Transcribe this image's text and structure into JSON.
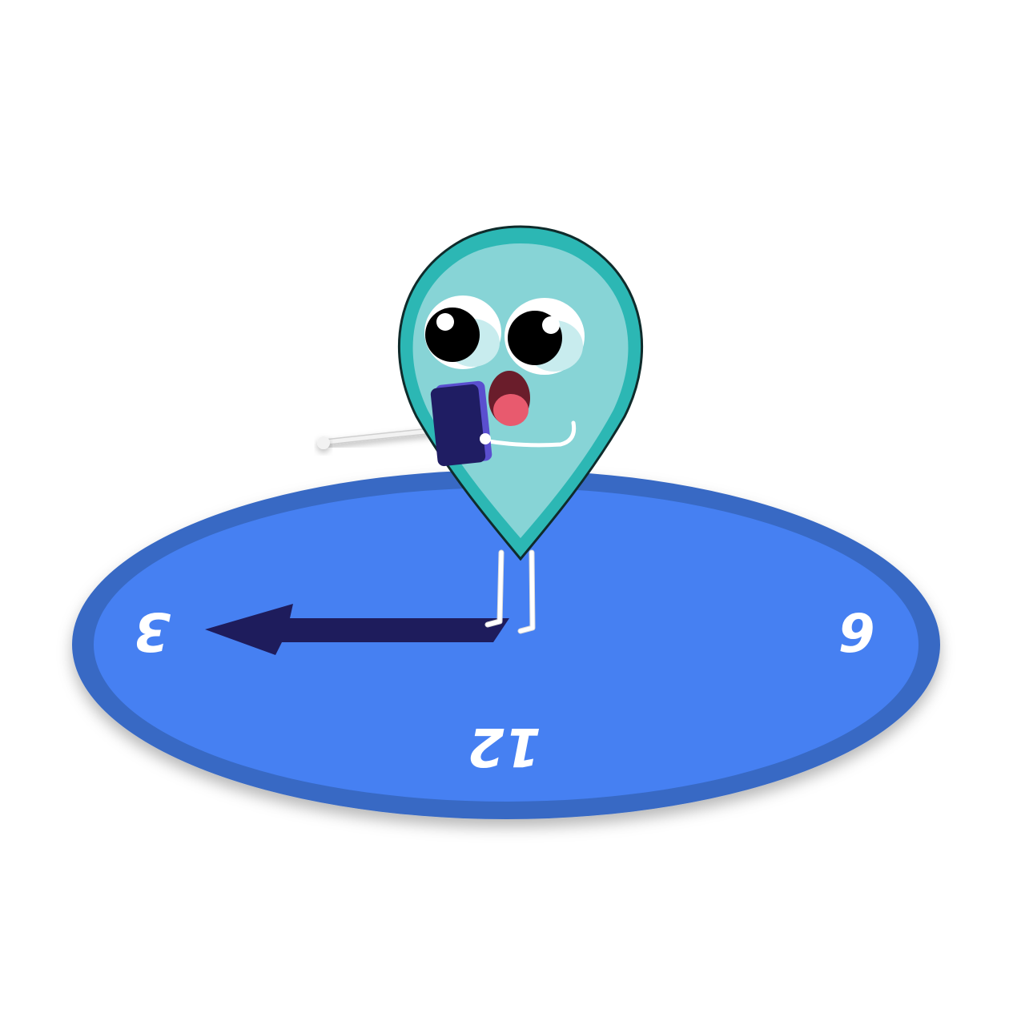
{
  "scene": {
    "dial_numbers": [
      "12",
      "3",
      "6"
    ],
    "colors": {
      "dial_outer": "#3869c4",
      "dial_inner": "#4680f2",
      "clock_hand": "#1e1c5c",
      "character_outer": "#2cb7b4",
      "character_inner": "#87d4d6",
      "character_outline": "#0f2b2b",
      "mouth": "#6a1d2b",
      "tongue": "#e85a6e",
      "phone": "#1f1d63",
      "phone_edge": "#5a4fcf",
      "limbs": "#ffffff"
    },
    "icons": [
      "teardrop-character",
      "smartphone-icon",
      "clock-hand-arrow"
    ]
  }
}
